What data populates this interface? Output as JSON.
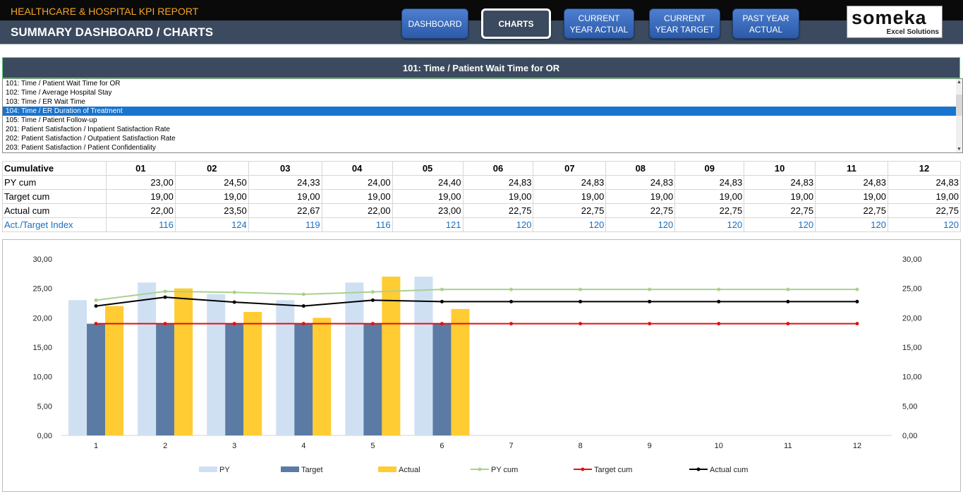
{
  "header": {
    "title": "HEALTHCARE & HOSPITAL KPI REPORT",
    "subtitle": "SUMMARY DASHBOARD / CHARTS",
    "nav": [
      {
        "label": "DASHBOARD"
      },
      {
        "label": "CHARTS",
        "active": true
      },
      {
        "label": "CURRENT\nYEAR ACTUAL"
      },
      {
        "label": "CURRENT\nYEAR TARGET"
      },
      {
        "label": "PAST YEAR\nACTUAL"
      }
    ],
    "logo_main": "someka",
    "logo_sub": "Excel Solutions"
  },
  "kpi": {
    "selected_title": "101: Time  / Patient Wait Time for OR",
    "items": [
      "101: Time  / Patient Wait Time for OR",
      "102: Time  / Average Hospital Stay",
      "103: Time  / ER Wait Time",
      "104: Time  / ER Duration of Treatment",
      "105: Time  / Patient Follow-up",
      "201: Patient Satisfaction / Inpatient Satisfaction Rate",
      "202: Patient Satisfaction / Outpatient Satisfaction Rate",
      "203: Patient Satisfaction / Patient Confidentiality"
    ],
    "highlighted_index": 3
  },
  "table": {
    "corner_label": "Cumulative",
    "months": [
      "01",
      "02",
      "03",
      "04",
      "05",
      "06",
      "07",
      "08",
      "09",
      "10",
      "11",
      "12"
    ],
    "rows": [
      {
        "label": "PY cum",
        "values": [
          "23,00",
          "24,50",
          "24,33",
          "24,00",
          "24,40",
          "24,83",
          "24,83",
          "24,83",
          "24,83",
          "24,83",
          "24,83",
          "24,83"
        ]
      },
      {
        "label": "Target cum",
        "values": [
          "19,00",
          "19,00",
          "19,00",
          "19,00",
          "19,00",
          "19,00",
          "19,00",
          "19,00",
          "19,00",
          "19,00",
          "19,00",
          "19,00"
        ]
      },
      {
        "label": "Actual cum",
        "values": [
          "22,00",
          "23,50",
          "22,67",
          "22,00",
          "23,00",
          "22,75",
          "22,75",
          "22,75",
          "22,75",
          "22,75",
          "22,75",
          "22,75"
        ]
      },
      {
        "label": "Act./Target Index",
        "values": [
          "116",
          "124",
          "119",
          "116",
          "121",
          "120",
          "120",
          "120",
          "120",
          "120",
          "120",
          "120"
        ]
      }
    ]
  },
  "chart_data": {
    "type": "bar",
    "categories": [
      "1",
      "2",
      "3",
      "4",
      "5",
      "6",
      "7",
      "8",
      "9",
      "10",
      "11",
      "12"
    ],
    "ylim": [
      0,
      30
    ],
    "yticks": [
      "0,00",
      "5,00",
      "10,00",
      "15,00",
      "20,00",
      "25,00",
      "30,00"
    ],
    "bar_series": [
      {
        "name": "PY",
        "color": "#cfe0f3",
        "values": [
          23,
          26,
          24,
          23,
          26,
          27,
          null,
          null,
          null,
          null,
          null,
          null
        ]
      },
      {
        "name": "Target",
        "color": "#5b7ba5",
        "values": [
          19,
          19,
          19,
          19,
          19,
          19,
          null,
          null,
          null,
          null,
          null,
          null
        ]
      },
      {
        "name": "Actual",
        "color": "#ffcc33",
        "values": [
          22,
          25,
          21,
          20,
          27,
          21.5,
          null,
          null,
          null,
          null,
          null,
          null
        ]
      }
    ],
    "line_series": [
      {
        "name": "PY cum",
        "color": "#a9d18e",
        "values": [
          23,
          24.5,
          24.33,
          24,
          24.4,
          24.83,
          24.83,
          24.83,
          24.83,
          24.83,
          24.83,
          24.83
        ]
      },
      {
        "name": "Target cum",
        "color": "#e31010",
        "values": [
          19,
          19,
          19,
          19,
          19,
          19,
          19,
          19,
          19,
          19,
          19,
          19
        ]
      },
      {
        "name": "Actual cum",
        "color": "#000000",
        "values": [
          22,
          23.5,
          22.67,
          22,
          23,
          22.75,
          22.75,
          22.75,
          22.75,
          22.75,
          22.75,
          22.75
        ]
      }
    ],
    "grid": false,
    "legend": "bottom"
  }
}
